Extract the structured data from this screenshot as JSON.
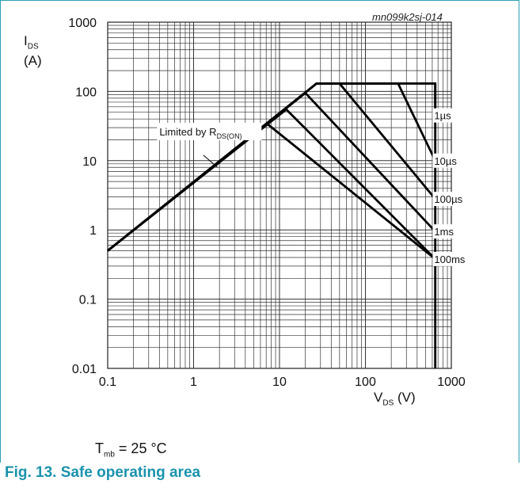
{
  "ref_id": "mn099k2sj-014",
  "y_axis": {
    "symbol": "I",
    "sub": "DS",
    "unit": "(A)"
  },
  "x_axis": {
    "symbol": "V",
    "sub": "DS",
    "unit": "(V)"
  },
  "condition": {
    "symbol": "T",
    "sub": "mb",
    "rest": "= 25 °C"
  },
  "figure_title": "Fig. 13. Safe operating area",
  "chart_data": {
    "type": "line",
    "x_scale": "log",
    "y_scale": "log",
    "xlim": [
      0.1,
      1000
    ],
    "ylim": [
      0.01,
      1000
    ],
    "x_ticks": [
      "0.1",
      "1",
      "10",
      "100",
      "1000"
    ],
    "y_ticks": [
      "0.01",
      "0.1",
      "1",
      "10",
      "100",
      "1000"
    ],
    "grid": true,
    "annotation": {
      "text": "Limited by R",
      "sub": "DS(ON)"
    },
    "series": [
      {
        "name": "1µs",
        "points": [
          [
            0.1,
            0.5
          ],
          [
            27,
            130
          ],
          [
            650,
            130
          ],
          [
            650,
            45
          ]
        ]
      },
      {
        "name": "10µs",
        "points": [
          [
            0.1,
            0.5
          ],
          [
            27,
            130
          ],
          [
            240,
            130
          ],
          [
            650,
            10
          ]
        ]
      },
      {
        "name": "100µs",
        "points": [
          [
            0.1,
            0.5
          ],
          [
            27,
            130
          ],
          [
            50,
            130
          ],
          [
            650,
            2.8
          ]
        ]
      },
      {
        "name": "1ms",
        "points": [
          [
            0.1,
            0.5
          ],
          [
            20,
            95
          ],
          [
            650,
            0.95
          ]
        ]
      },
      {
        "name": "100ms",
        "points": [
          [
            0.1,
            0.5
          ],
          [
            12,
            55
          ],
          [
            650,
            0.38
          ]
        ]
      },
      {
        "name": "",
        "points": [
          [
            7.2,
            34
          ],
          [
            650,
            0.38
          ]
        ]
      },
      {
        "name": "",
        "points": [
          [
            650,
            130
          ],
          [
            650,
            0.01
          ]
        ]
      }
    ],
    "labels": [
      {
        "text": "1µs",
        "x": 660,
        "y": 45
      },
      {
        "text": "10µs",
        "x": 660,
        "y": 10
      },
      {
        "text": "100µs",
        "x": 660,
        "y": 2.8
      },
      {
        "text": "1ms",
        "x": 660,
        "y": 0.95
      },
      {
        "text": "100ms",
        "x": 660,
        "y": 0.38
      }
    ]
  }
}
